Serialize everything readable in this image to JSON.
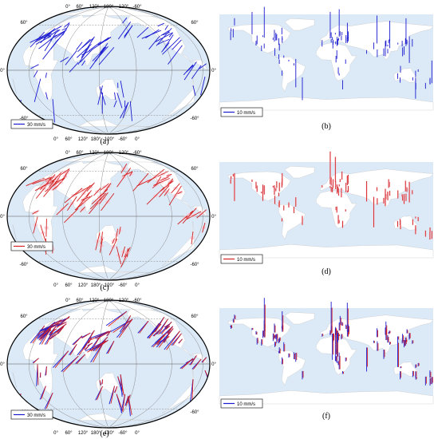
{
  "panels": [
    {
      "id": "a",
      "label": "(a)",
      "type": "globe",
      "legend": "30 mm/s",
      "colors": [
        "#1a1ad0"
      ]
    },
    {
      "id": "b",
      "label": "(b)",
      "type": "flat",
      "legend": "10 mm/s",
      "colors": [
        "#1a1ad0"
      ]
    },
    {
      "id": "c",
      "label": "(c)",
      "type": "globe",
      "legend": "30 mm/s",
      "colors": [
        "#d42020"
      ]
    },
    {
      "id": "d",
      "label": "(d)",
      "type": "flat",
      "legend": "10 mm/s",
      "colors": [
        "#d42020"
      ]
    },
    {
      "id": "e",
      "label": "(e)",
      "type": "globe",
      "legend": "30 mm/s",
      "colors": [
        "#1a1ad0",
        "#d42020"
      ]
    },
    {
      "id": "f",
      "label": "(f)",
      "type": "flat",
      "legend": "10 mm/s",
      "colors": [
        "#1a1ad0",
        "#d42020"
      ]
    }
  ],
  "globe_ticks": {
    "top": [
      "0°",
      "60°",
      "120°",
      "180°",
      "-120°",
      "-60°"
    ],
    "bottom": [
      "0°",
      "60°",
      "120°",
      "180°",
      "-120°",
      "-60°",
      "0°"
    ],
    "left": [
      "60°",
      "0°",
      "-60°"
    ],
    "right": [
      "60°",
      "0°",
      "-60°"
    ]
  },
  "colors": {
    "ocean": "#dce9f7",
    "land": "#ffffff",
    "error": "#f6c6d2",
    "blue": "#1a1ad0",
    "red": "#d42020"
  }
}
